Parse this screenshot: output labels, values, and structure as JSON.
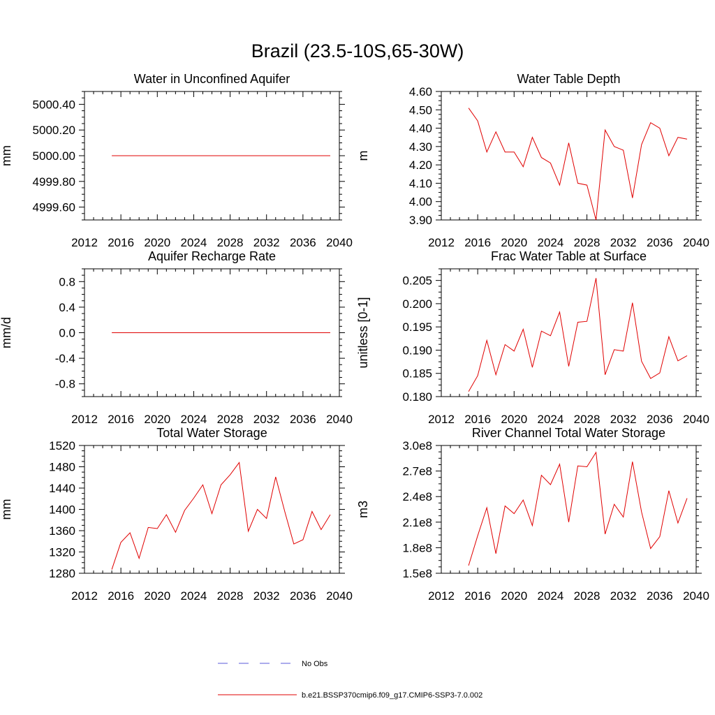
{
  "figure": {
    "title": "Brazil (23.5-10S,65-30W)"
  },
  "legend": {
    "entries": [
      {
        "label": "No Obs",
        "color": "#5a5ad8",
        "dash": true
      },
      {
        "label": "b.e21.BSSP370cmip6.f09_g17.CMIP6-SSP3-7.0.002",
        "color": "#e00000",
        "dash": false
      }
    ]
  },
  "chart_data": [
    {
      "type": "line",
      "title": "Water in Unconfined Aquifer",
      "xlabel": "",
      "ylabel": "mm",
      "xlim": [
        2012,
        2040
      ],
      "xticks": [
        2012,
        2016,
        2020,
        2024,
        2028,
        2032,
        2036,
        2040
      ],
      "xtick_labels": [
        "2012",
        "2016",
        "2020",
        "2024",
        "2028",
        "2032",
        "2036",
        "2040"
      ],
      "ylim": [
        4999.5,
        5000.5
      ],
      "yticks": [
        4999.6,
        4999.8,
        5000.0,
        5000.2,
        5000.4
      ],
      "ytick_labels": [
        "4999.60",
        "4999.80",
        "5000.00",
        "5000.20",
        "5000.40"
      ],
      "series": [
        {
          "name": "b.e21.BSSP370cmip6.f09_g17.CMIP6-SSP3-7.0.002",
          "color": "#e00000",
          "x": [
            2015,
            2016,
            2017,
            2018,
            2019,
            2020,
            2021,
            2022,
            2023,
            2024,
            2025,
            2026,
            2027,
            2028,
            2029,
            2030,
            2031,
            2032,
            2033,
            2034,
            2035,
            2036,
            2037,
            2038,
            2039
          ],
          "values": [
            5000.0,
            5000.0,
            5000.0,
            5000.0,
            5000.0,
            5000.0,
            5000.0,
            5000.0,
            5000.0,
            5000.0,
            5000.0,
            5000.0,
            5000.0,
            5000.0,
            5000.0,
            5000.0,
            5000.0,
            5000.0,
            5000.0,
            5000.0,
            5000.0,
            5000.0,
            5000.0,
            5000.0,
            5000.0
          ]
        }
      ]
    },
    {
      "type": "line",
      "title": "Water Table Depth",
      "xlabel": "",
      "ylabel": "m",
      "xlim": [
        2012,
        2040
      ],
      "xticks": [
        2012,
        2016,
        2020,
        2024,
        2028,
        2032,
        2036,
        2040
      ],
      "xtick_labels": [
        "2012",
        "2016",
        "2020",
        "2024",
        "2028",
        "2032",
        "2036",
        "2040"
      ],
      "ylim": [
        3.9,
        4.6
      ],
      "yticks": [
        3.9,
        4.0,
        4.1,
        4.2,
        4.3,
        4.4,
        4.5,
        4.6
      ],
      "ytick_labels": [
        "3.90",
        "4.00",
        "4.10",
        "4.20",
        "4.30",
        "4.40",
        "4.50",
        "4.60"
      ],
      "series": [
        {
          "name": "b.e21.BSSP370cmip6.f09_g17.CMIP6-SSP3-7.0.002",
          "color": "#e00000",
          "x": [
            2015,
            2016,
            2017,
            2018,
            2019,
            2020,
            2021,
            2022,
            2023,
            2024,
            2025,
            2026,
            2027,
            2028,
            2029,
            2030,
            2031,
            2032,
            2033,
            2034,
            2035,
            2036,
            2037,
            2038,
            2039
          ],
          "values": [
            4.51,
            4.44,
            4.27,
            4.38,
            4.27,
            4.27,
            4.19,
            4.35,
            4.24,
            4.21,
            4.09,
            4.32,
            4.1,
            4.09,
            3.9,
            4.39,
            4.3,
            4.28,
            4.02,
            4.31,
            4.43,
            4.4,
            4.25,
            4.35,
            4.34
          ]
        }
      ]
    },
    {
      "type": "line",
      "title": "Aquifer Recharge Rate",
      "xlabel": "",
      "ylabel": "mm/d",
      "xlim": [
        2012,
        2040
      ],
      "xticks": [
        2012,
        2016,
        2020,
        2024,
        2028,
        2032,
        2036,
        2040
      ],
      "xtick_labels": [
        "2012",
        "2016",
        "2020",
        "2024",
        "2028",
        "2032",
        "2036",
        "2040"
      ],
      "ylim": [
        -1.0,
        1.0
      ],
      "yticks": [
        -0.8,
        -0.4,
        0.0,
        0.4,
        0.8
      ],
      "ytick_labels": [
        "-0.8",
        "-0.4",
        "0.0",
        "0.4",
        "0.8"
      ],
      "series": [
        {
          "name": "b.e21.BSSP370cmip6.f09_g17.CMIP6-SSP3-7.0.002",
          "color": "#e00000",
          "x": [
            2015,
            2016,
            2017,
            2018,
            2019,
            2020,
            2021,
            2022,
            2023,
            2024,
            2025,
            2026,
            2027,
            2028,
            2029,
            2030,
            2031,
            2032,
            2033,
            2034,
            2035,
            2036,
            2037,
            2038,
            2039
          ],
          "values": [
            0,
            0,
            0,
            0,
            0,
            0,
            0,
            0,
            0,
            0,
            0,
            0,
            0,
            0,
            0,
            0,
            0,
            0,
            0,
            0,
            0,
            0,
            0,
            0,
            0
          ]
        }
      ]
    },
    {
      "type": "line",
      "title": "Frac Water Table at Surface",
      "xlabel": "",
      "ylabel": "unitless [0-1]",
      "xlim": [
        2012,
        2040
      ],
      "xticks": [
        2012,
        2016,
        2020,
        2024,
        2028,
        2032,
        2036,
        2040
      ],
      "xtick_labels": [
        "2012",
        "2016",
        "2020",
        "2024",
        "2028",
        "2032",
        "2036",
        "2040"
      ],
      "ylim": [
        0.18,
        0.2075
      ],
      "yticks": [
        0.18,
        0.185,
        0.19,
        0.195,
        0.2,
        0.205
      ],
      "ytick_labels": [
        "0.180",
        "0.185",
        "0.190",
        "0.195",
        "0.200",
        "0.205"
      ],
      "series": [
        {
          "name": "b.e21.BSSP370cmip6.f09_g17.CMIP6-SSP3-7.0.002",
          "color": "#e00000",
          "x": [
            2015,
            2016,
            2017,
            2018,
            2019,
            2020,
            2021,
            2022,
            2023,
            2024,
            2025,
            2026,
            2027,
            2028,
            2029,
            2030,
            2031,
            2032,
            2033,
            2034,
            2035,
            2036,
            2037,
            2038,
            2039
          ],
          "values": [
            0.1811,
            0.1845,
            0.1921,
            0.1847,
            0.1912,
            0.1898,
            0.1945,
            0.1863,
            0.1941,
            0.1931,
            0.1982,
            0.1865,
            0.196,
            0.1962,
            0.2055,
            0.1847,
            0.1901,
            0.1898,
            0.2002,
            0.1876,
            0.1839,
            0.1851,
            0.1929,
            0.1877,
            0.1888
          ]
        }
      ]
    },
    {
      "type": "line",
      "title": "Total Water Storage",
      "xlabel": "",
      "ylabel": "mm",
      "xlim": [
        2012,
        2040
      ],
      "xticks": [
        2012,
        2016,
        2020,
        2024,
        2028,
        2032,
        2036,
        2040
      ],
      "xtick_labels": [
        "2012",
        "2016",
        "2020",
        "2024",
        "2028",
        "2032",
        "2036",
        "2040"
      ],
      "ylim": [
        1280,
        1520
      ],
      "yticks": [
        1280,
        1320,
        1360,
        1400,
        1440,
        1480,
        1520
      ],
      "ytick_labels": [
        "1280",
        "1320",
        "1360",
        "1400",
        "1440",
        "1480",
        "1520"
      ],
      "series": [
        {
          "name": "b.e21.BSSP370cmip6.f09_g17.CMIP6-SSP3-7.0.002",
          "color": "#e00000",
          "x": [
            2015,
            2016,
            2017,
            2018,
            2019,
            2020,
            2021,
            2022,
            2023,
            2024,
            2025,
            2026,
            2027,
            2028,
            2029,
            2030,
            2031,
            2032,
            2033,
            2034,
            2035,
            2036,
            2037,
            2038,
            2039
          ],
          "values": [
            1287,
            1338,
            1356,
            1308,
            1366,
            1364,
            1390,
            1357,
            1398,
            1421,
            1446,
            1392,
            1446,
            1465,
            1488,
            1359,
            1400,
            1383,
            1461,
            1396,
            1335,
            1343,
            1396,
            1362,
            1390
          ]
        }
      ]
    },
    {
      "type": "line",
      "title": "River Channel Total Water Storage",
      "xlabel": "",
      "ylabel": "m3",
      "xlim": [
        2012,
        2040
      ],
      "xticks": [
        2012,
        2016,
        2020,
        2024,
        2028,
        2032,
        2036,
        2040
      ],
      "xtick_labels": [
        "2012",
        "2016",
        "2020",
        "2024",
        "2028",
        "2032",
        "2036",
        "2040"
      ],
      "ylim": [
        150000000,
        300000000
      ],
      "yticks": [
        150000000,
        180000000,
        210000000,
        240000000,
        270000000,
        300000000
      ],
      "ytick_labels": [
        "1.5e8",
        "1.8e8",
        "2.1e8",
        "2.4e8",
        "2.7e8",
        "3.0e8"
      ],
      "series": [
        {
          "name": "b.e21.BSSP370cmip6.f09_g17.CMIP6-SSP3-7.0.002",
          "color": "#e00000",
          "x": [
            2015,
            2016,
            2017,
            2018,
            2019,
            2020,
            2021,
            2022,
            2023,
            2024,
            2025,
            2026,
            2027,
            2028,
            2029,
            2030,
            2031,
            2032,
            2033,
            2034,
            2035,
            2036,
            2037,
            2038,
            2039
          ],
          "values": [
            159000000,
            194000000,
            227000000,
            173000000,
            229000000,
            220000000,
            236000000,
            206000000,
            265000000,
            254000000,
            278000000,
            210000000,
            276000000,
            275000000,
            292000000,
            196000000,
            231000000,
            216000000,
            281000000,
            222000000,
            179000000,
            193000000,
            247000000,
            209000000,
            238000000
          ]
        }
      ]
    }
  ]
}
